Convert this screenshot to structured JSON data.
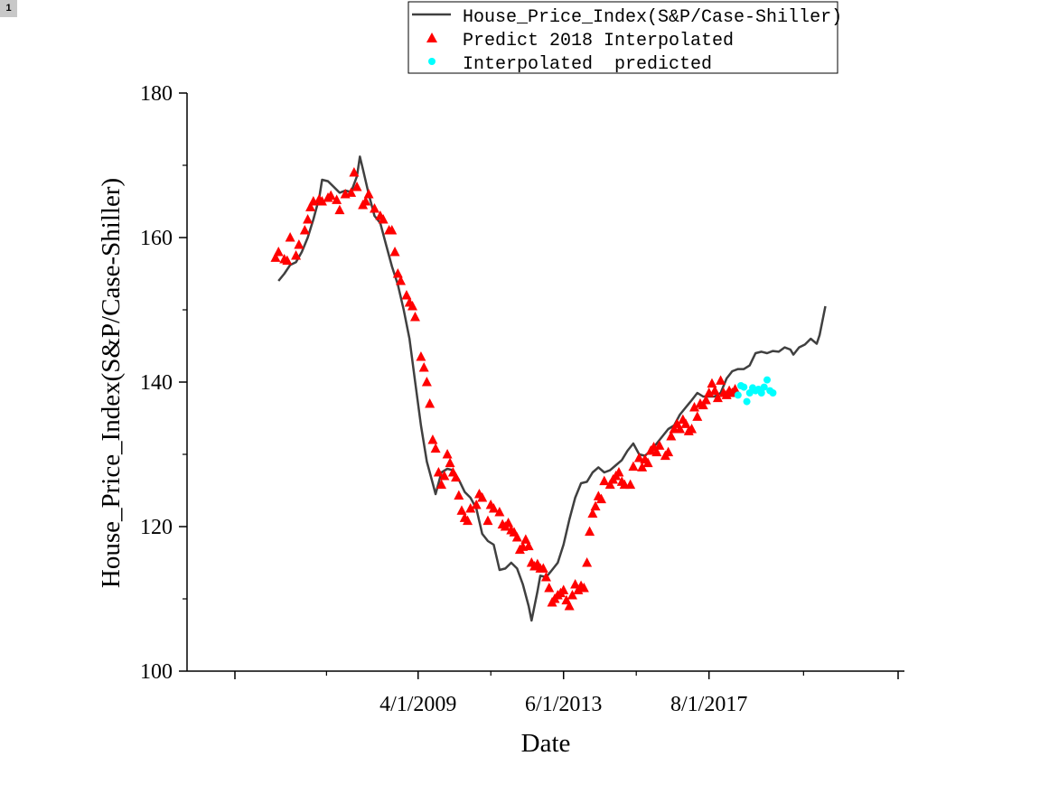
{
  "page_badge": "1",
  "chart_data": {
    "type": "line",
    "title": "",
    "xlabel": "Date",
    "ylabel": "House_Price_Index(S&P/Case-Shiller)",
    "xlim": [
      "2004-01-01",
      "2023-01-01"
    ],
    "ylim": [
      100,
      180
    ],
    "yticks": [
      100,
      120,
      140,
      160,
      180
    ],
    "xticks": [
      {
        "date": "2009-04-01",
        "label": "4/1/2009"
      },
      {
        "date": "2013-06-01",
        "label": "6/1/2013"
      },
      {
        "date": "2017-08-01",
        "label": "8/1/2017"
      }
    ],
    "grid": false,
    "legend": {
      "placement": "top-center"
    },
    "series": [
      {
        "name": "House_Price_Index(S&P/Case-Shiller)",
        "kind": "line",
        "color": "#404040",
        "points": [
          [
            "2005-04-01",
            154.0
          ],
          [
            "2005-06-01",
            155.0
          ],
          [
            "2005-08-01",
            156.2
          ],
          [
            "2005-10-01",
            156.6
          ],
          [
            "2005-12-01",
            158.0
          ],
          [
            "2006-02-01",
            160.0
          ],
          [
            "2006-04-01",
            162.5
          ],
          [
            "2006-06-01",
            165.5
          ],
          [
            "2006-07-01",
            168.0
          ],
          [
            "2006-09-01",
            167.8
          ],
          [
            "2006-11-01",
            167.0
          ],
          [
            "2007-01-01",
            166.2
          ],
          [
            "2007-03-01",
            166.5
          ],
          [
            "2007-05-01",
            166.3
          ],
          [
            "2007-07-01",
            168.5
          ],
          [
            "2007-08-01",
            171.2
          ],
          [
            "2007-09-01",
            169.5
          ],
          [
            "2007-11-01",
            166.0
          ],
          [
            "2008-01-01",
            163.0
          ],
          [
            "2008-03-01",
            162.0
          ],
          [
            "2008-05-01",
            159.0
          ],
          [
            "2008-07-01",
            156.0
          ],
          [
            "2008-09-01",
            153.5
          ],
          [
            "2008-11-01",
            150.0
          ],
          [
            "2009-01-01",
            146.0
          ],
          [
            "2009-03-01",
            140.0
          ],
          [
            "2009-05-01",
            134.0
          ],
          [
            "2009-07-01",
            129.0
          ],
          [
            "2009-09-01",
            126.0
          ],
          [
            "2009-10-01",
            124.5
          ],
          [
            "2009-12-01",
            127.5
          ],
          [
            "2010-02-01",
            128.0
          ],
          [
            "2010-04-01",
            127.8
          ],
          [
            "2010-06-01",
            126.5
          ],
          [
            "2010-08-01",
            124.8
          ],
          [
            "2010-10-01",
            124.0
          ],
          [
            "2010-12-01",
            122.5
          ],
          [
            "2011-02-01",
            119.0
          ],
          [
            "2011-04-01",
            118.0
          ],
          [
            "2011-06-01",
            117.5
          ],
          [
            "2011-08-01",
            114.0
          ],
          [
            "2011-10-01",
            114.2
          ],
          [
            "2011-12-01",
            115.0
          ],
          [
            "2012-02-01",
            114.2
          ],
          [
            "2012-04-01",
            112.0
          ],
          [
            "2012-06-01",
            109.0
          ],
          [
            "2012-07-01",
            107.0
          ],
          [
            "2012-09-01",
            111.0
          ],
          [
            "2012-10-01",
            113.2
          ],
          [
            "2012-12-01",
            113.0
          ],
          [
            "2013-02-01",
            114.0
          ],
          [
            "2013-04-01",
            115.0
          ],
          [
            "2013-06-01",
            117.5
          ],
          [
            "2013-08-01",
            121.0
          ],
          [
            "2013-10-01",
            124.0
          ],
          [
            "2013-12-01",
            126.0
          ],
          [
            "2014-02-01",
            126.2
          ],
          [
            "2014-04-01",
            127.5
          ],
          [
            "2014-06-01",
            128.2
          ],
          [
            "2014-08-01",
            127.5
          ],
          [
            "2014-10-01",
            127.8
          ],
          [
            "2014-12-01",
            128.5
          ],
          [
            "2015-02-01",
            129.2
          ],
          [
            "2015-04-01",
            130.5
          ],
          [
            "2015-06-01",
            131.5
          ],
          [
            "2015-08-01",
            130.0
          ],
          [
            "2015-10-01",
            129.8
          ],
          [
            "2015-12-01",
            130.5
          ],
          [
            "2016-02-01",
            131.5
          ],
          [
            "2016-04-01",
            132.5
          ],
          [
            "2016-06-01",
            133.5
          ],
          [
            "2016-08-01",
            134.0
          ],
          [
            "2016-10-01",
            135.5
          ],
          [
            "2016-12-01",
            136.5
          ],
          [
            "2017-02-01",
            137.5
          ],
          [
            "2017-04-01",
            138.5
          ],
          [
            "2017-06-01",
            138.0
          ],
          [
            "2017-08-01",
            138.0
          ],
          [
            "2017-10-01",
            138.0
          ],
          [
            "2017-12-01",
            138.5
          ],
          [
            "2018-02-01",
            140.5
          ],
          [
            "2018-04-01",
            141.5
          ],
          [
            "2018-06-01",
            141.8
          ],
          [
            "2018-08-01",
            141.8
          ],
          [
            "2018-10-01",
            142.3
          ],
          [
            "2018-12-01",
            144.0
          ],
          [
            "2019-02-01",
            144.2
          ],
          [
            "2019-04-01",
            144.0
          ],
          [
            "2019-06-01",
            144.3
          ],
          [
            "2019-08-01",
            144.2
          ],
          [
            "2019-10-01",
            144.8
          ],
          [
            "2019-12-01",
            144.5
          ],
          [
            "2020-01-01",
            143.8
          ],
          [
            "2020-03-01",
            144.8
          ],
          [
            "2020-05-01",
            145.2
          ],
          [
            "2020-07-01",
            146.0
          ],
          [
            "2020-09-01",
            145.3
          ],
          [
            "2020-10-01",
            146.5
          ],
          [
            "2020-12-01",
            150.5
          ]
        ]
      },
      {
        "name": "Predict 2018 Interpolated",
        "kind": "scatter",
        "marker": "triangle",
        "color": "#ff0000",
        "points": [
          [
            "2005-03-01",
            157.2
          ],
          [
            "2005-04-01",
            158.0
          ],
          [
            "2005-06-01",
            157.0
          ],
          [
            "2005-07-01",
            156.8
          ],
          [
            "2005-08-01",
            160.0
          ],
          [
            "2005-10-01",
            157.5
          ],
          [
            "2005-11-01",
            159.0
          ],
          [
            "2006-01-01",
            161.0
          ],
          [
            "2006-02-01",
            162.5
          ],
          [
            "2006-03-01",
            164.2
          ],
          [
            "2006-04-01",
            165.0
          ],
          [
            "2006-06-01",
            165.3
          ],
          [
            "2006-07-01",
            165.0
          ],
          [
            "2006-09-01",
            165.5
          ],
          [
            "2006-10-01",
            165.8
          ],
          [
            "2006-12-01",
            165.2
          ],
          [
            "2007-01-01",
            163.8
          ],
          [
            "2007-03-01",
            166.0
          ],
          [
            "2007-05-01",
            166.2
          ],
          [
            "2007-06-01",
            169.0
          ],
          [
            "2007-07-01",
            167.0
          ],
          [
            "2007-09-01",
            164.5
          ],
          [
            "2007-10-01",
            165.0
          ],
          [
            "2007-11-01",
            166.0
          ],
          [
            "2008-01-01",
            164.0
          ],
          [
            "2008-03-01",
            163.0
          ],
          [
            "2008-04-01",
            162.5
          ],
          [
            "2008-06-01",
            161.0
          ],
          [
            "2008-07-01",
            161.0
          ],
          [
            "2008-08-01",
            158.0
          ],
          [
            "2008-09-01",
            155.0
          ],
          [
            "2008-10-01",
            154.0
          ],
          [
            "2008-12-01",
            152.0
          ],
          [
            "2009-01-01",
            151.0
          ],
          [
            "2009-02-01",
            150.5
          ],
          [
            "2009-03-01",
            149.0
          ],
          [
            "2009-05-01",
            143.5
          ],
          [
            "2009-06-01",
            142.0
          ],
          [
            "2009-07-01",
            140.0
          ],
          [
            "2009-08-01",
            137.0
          ],
          [
            "2009-09-01",
            132.0
          ],
          [
            "2009-10-01",
            130.8
          ],
          [
            "2009-11-01",
            127.5
          ],
          [
            "2009-12-01",
            125.8
          ],
          [
            "2010-01-01",
            127.0
          ],
          [
            "2010-02-01",
            130.0
          ],
          [
            "2010-03-01",
            128.8
          ],
          [
            "2010-04-01",
            127.5
          ],
          [
            "2010-05-01",
            126.8
          ],
          [
            "2010-06-01",
            124.3
          ],
          [
            "2010-07-01",
            122.2
          ],
          [
            "2010-08-01",
            121.2
          ],
          [
            "2010-09-01",
            120.8
          ],
          [
            "2010-10-01",
            122.5
          ],
          [
            "2010-12-01",
            123.0
          ],
          [
            "2011-01-01",
            124.5
          ],
          [
            "2011-02-01",
            124.0
          ],
          [
            "2011-04-01",
            120.8
          ],
          [
            "2011-05-01",
            123.0
          ],
          [
            "2011-06-01",
            122.5
          ],
          [
            "2011-08-01",
            122.0
          ],
          [
            "2011-09-01",
            120.3
          ],
          [
            "2011-10-01",
            120.0
          ],
          [
            "2011-11-01",
            120.5
          ],
          [
            "2011-12-01",
            119.5
          ],
          [
            "2012-01-01",
            119.2
          ],
          [
            "2012-02-01",
            118.5
          ],
          [
            "2012-03-01",
            116.8
          ],
          [
            "2012-04-01",
            117.2
          ],
          [
            "2012-05-01",
            118.2
          ],
          [
            "2012-06-01",
            117.3
          ],
          [
            "2012-07-01",
            115.0
          ],
          [
            "2012-08-01",
            114.5
          ],
          [
            "2012-09-01",
            114.8
          ],
          [
            "2012-10-01",
            114.2
          ],
          [
            "2012-11-01",
            114.2
          ],
          [
            "2012-12-01",
            113.0
          ],
          [
            "2013-01-01",
            111.5
          ],
          [
            "2013-02-01",
            109.5
          ],
          [
            "2013-03-01",
            110.0
          ],
          [
            "2013-04-01",
            110.5
          ],
          [
            "2013-05-01",
            110.8
          ],
          [
            "2013-06-01",
            111.2
          ],
          [
            "2013-07-01",
            109.8
          ],
          [
            "2013-08-01",
            109.0
          ],
          [
            "2013-09-01",
            110.5
          ],
          [
            "2013-10-01",
            112.0
          ],
          [
            "2013-11-01",
            111.2
          ],
          [
            "2013-12-01",
            111.8
          ],
          [
            "2014-01-01",
            111.5
          ],
          [
            "2014-02-01",
            115.0
          ],
          [
            "2014-03-01",
            119.3
          ],
          [
            "2014-04-01",
            121.8
          ],
          [
            "2014-05-01",
            122.8
          ],
          [
            "2014-06-01",
            124.2
          ],
          [
            "2014-07-01",
            123.8
          ],
          [
            "2014-08-01",
            126.3
          ],
          [
            "2014-10-01",
            125.8
          ],
          [
            "2014-11-01",
            126.5
          ],
          [
            "2014-12-01",
            127.0
          ],
          [
            "2015-01-01",
            127.5
          ],
          [
            "2015-02-01",
            126.2
          ],
          [
            "2015-03-01",
            125.8
          ],
          [
            "2015-05-01",
            125.8
          ],
          [
            "2015-06-01",
            128.3
          ],
          [
            "2015-08-01",
            129.5
          ],
          [
            "2015-09-01",
            128.2
          ],
          [
            "2015-10-01",
            129.3
          ],
          [
            "2015-11-01",
            128.8
          ],
          [
            "2015-12-01",
            130.5
          ],
          [
            "2016-01-01",
            131.0
          ],
          [
            "2016-02-01",
            130.3
          ],
          [
            "2016-03-01",
            131.2
          ],
          [
            "2016-05-01",
            129.8
          ],
          [
            "2016-06-01",
            130.3
          ],
          [
            "2016-07-01",
            132.5
          ],
          [
            "2016-08-01",
            133.5
          ],
          [
            "2016-09-01",
            134.2
          ],
          [
            "2016-10-01",
            133.5
          ],
          [
            "2016-11-01",
            134.8
          ],
          [
            "2016-12-01",
            134.2
          ],
          [
            "2017-01-01",
            133.2
          ],
          [
            "2017-02-01",
            133.5
          ],
          [
            "2017-03-01",
            136.5
          ],
          [
            "2017-04-01",
            135.2
          ],
          [
            "2017-05-01",
            137.0
          ],
          [
            "2017-06-01",
            136.8
          ],
          [
            "2017-07-01",
            137.5
          ],
          [
            "2017-08-01",
            138.5
          ],
          [
            "2017-09-01",
            139.8
          ],
          [
            "2017-10-01",
            138.8
          ],
          [
            "2017-11-01",
            137.8
          ],
          [
            "2017-12-01",
            140.2
          ],
          [
            "2018-01-01",
            138.5
          ],
          [
            "2018-02-01",
            138.2
          ],
          [
            "2018-03-01",
            138.8
          ],
          [
            "2018-04-01",
            138.5
          ],
          [
            "2018-05-01",
            139.0
          ]
        ]
      },
      {
        "name": "Interpolated  predicted",
        "kind": "scatter",
        "marker": "circle",
        "color": "#00ffff",
        "points": [
          [
            "2018-06-01",
            138.2
          ],
          [
            "2018-07-01",
            139.5
          ],
          [
            "2018-08-01",
            139.3
          ],
          [
            "2018-09-01",
            137.3
          ],
          [
            "2018-10-01",
            138.5
          ],
          [
            "2018-11-01",
            139.2
          ],
          [
            "2018-12-01",
            138.8
          ],
          [
            "2019-01-01",
            139.0
          ],
          [
            "2019-02-01",
            138.5
          ],
          [
            "2019-03-01",
            139.3
          ],
          [
            "2019-04-01",
            140.3
          ],
          [
            "2019-05-01",
            138.8
          ],
          [
            "2019-06-01",
            138.5
          ]
        ]
      }
    ]
  }
}
